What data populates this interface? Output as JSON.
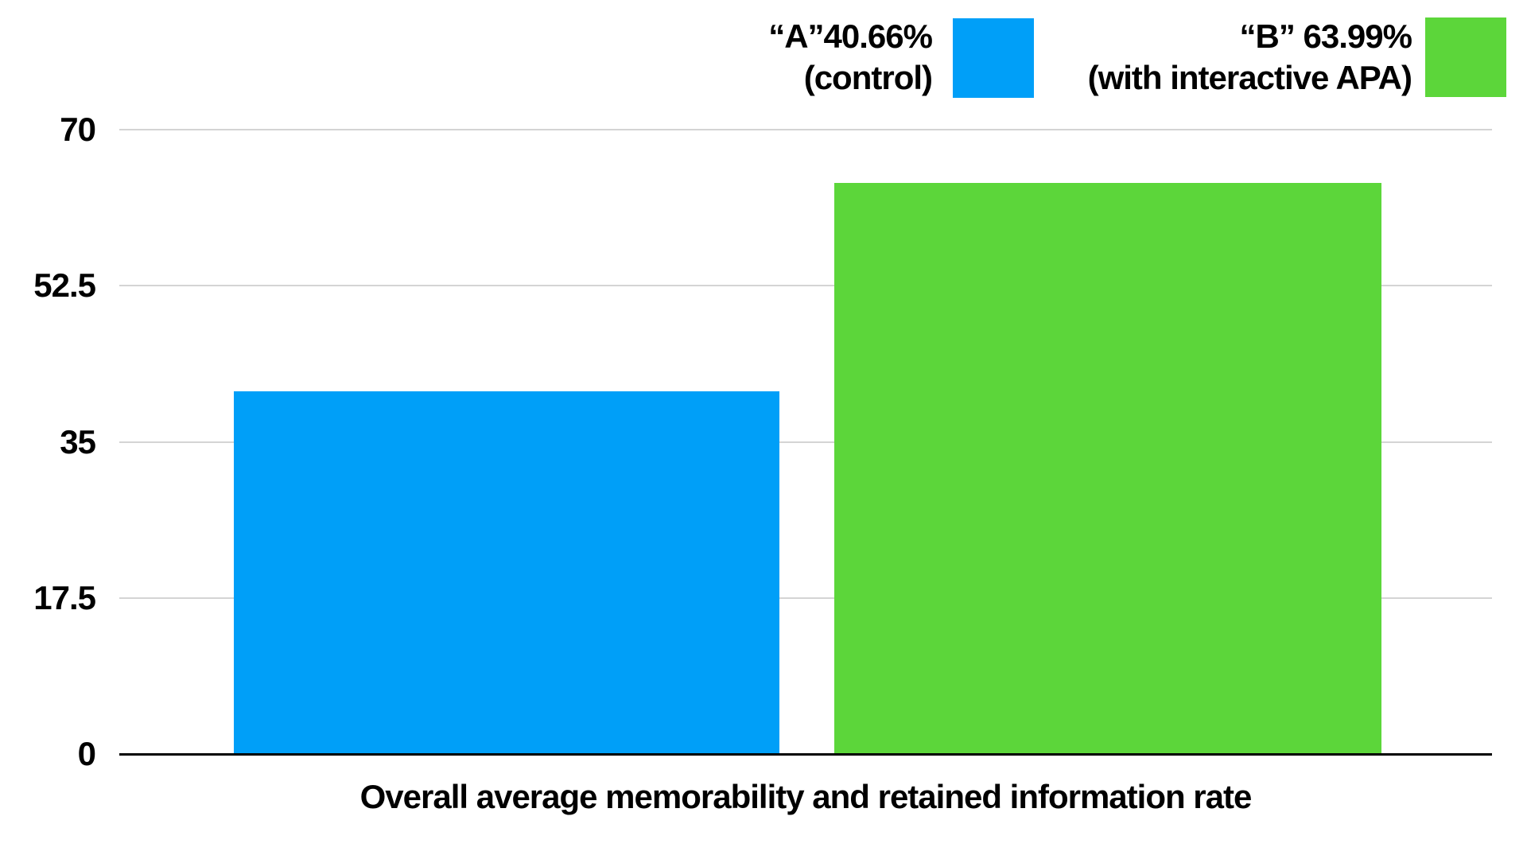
{
  "colors": {
    "bar_a": "#009FF8",
    "bar_b": "#5CD63A",
    "gridline": "#d4d4d4",
    "axis": "#000000",
    "text": "#000000"
  },
  "legend": {
    "a": {
      "line1": "“A”40.66%",
      "line2": "(control)"
    },
    "b": {
      "line1": "“B” 63.99%",
      "line2": "(with interactive APA)"
    }
  },
  "chart_data": {
    "type": "bar",
    "title": "",
    "xlabel": "Overall average memorability and retained information rate",
    "ylabel": "",
    "ylim": [
      0,
      70
    ],
    "yticks": [
      70,
      52.5,
      35,
      17.5,
      0
    ],
    "grid": true,
    "legend_position": "top-right",
    "categories": [
      "Overall average memorability and retained information rate"
    ],
    "series": [
      {
        "name": "“A”40.66% (control)",
        "value": 40.66,
        "color": "#009FF8"
      },
      {
        "name": "“B” 63.99% (with interactive APA)",
        "value": 63.99,
        "color": "#5CD63A"
      }
    ]
  }
}
